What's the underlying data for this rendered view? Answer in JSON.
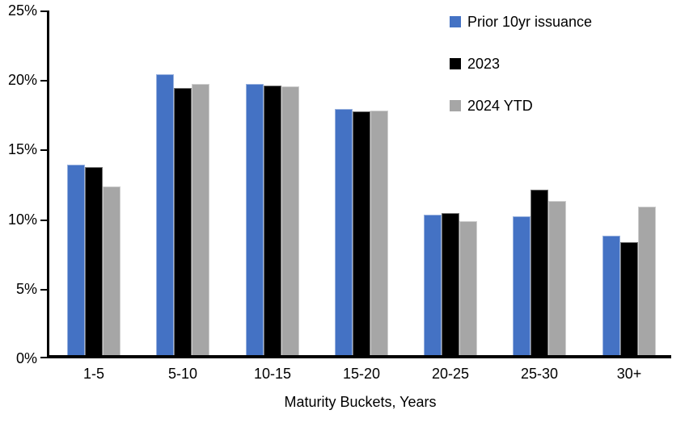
{
  "chart_data": {
    "type": "bar",
    "title": "",
    "categories": [
      "1-5",
      "5-10",
      "10-15",
      "15-20",
      "20-25",
      "25-30",
      "30+"
    ],
    "series": [
      {
        "name": "Prior 10yr issuance",
        "color": "#4472C4",
        "values": [
          13.7,
          20.2,
          19.5,
          17.7,
          10.1,
          10.0,
          8.6
        ]
      },
      {
        "name": "2023",
        "color": "#000000",
        "values": [
          13.5,
          19.2,
          19.4,
          17.5,
          10.2,
          11.9,
          8.1
        ]
      },
      {
        "name": "2024 YTD",
        "color": "#A6A6A6",
        "values": [
          12.1,
          19.5,
          19.3,
          17.6,
          9.6,
          11.1,
          10.7
        ]
      }
    ],
    "xlabel": "Maturity Buckets, Years",
    "ylabel": "",
    "ylim": [
      0,
      25
    ],
    "y_ticks": [
      {
        "value": 25,
        "label": "25%"
      },
      {
        "value": 20,
        "label": "20%"
      },
      {
        "value": 15,
        "label": "15%"
      },
      {
        "value": 10,
        "label": "10%"
      },
      {
        "value": 5,
        "label": "5%"
      },
      {
        "value": 0,
        "label": "0%"
      }
    ],
    "grid": false,
    "legend_position": "top-right",
    "axis_color": "#000000",
    "background_color": "#FFFFFF"
  }
}
